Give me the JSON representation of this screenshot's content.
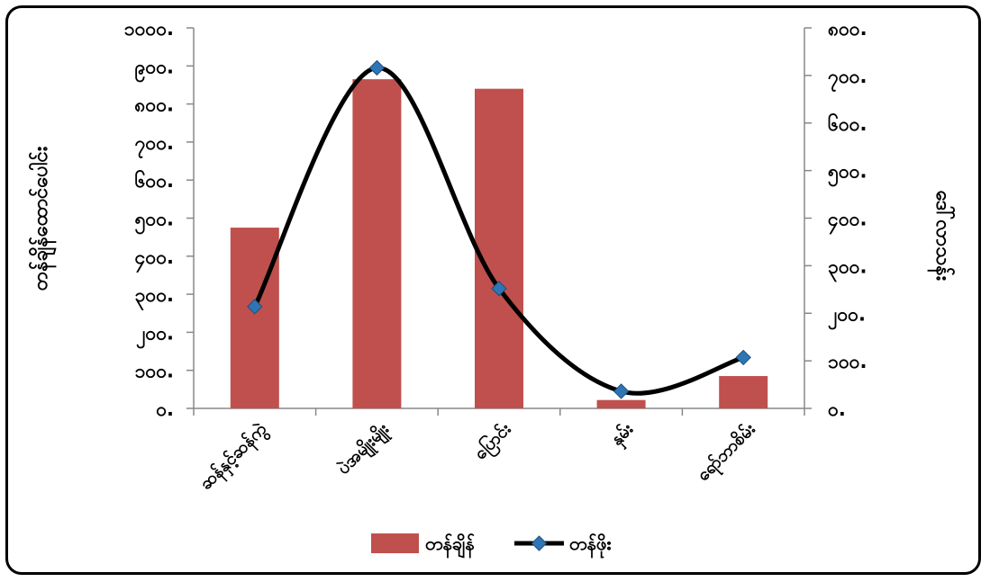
{
  "chart_data": {
    "type": "bar",
    "categories": [
      "ဆန်နှင့်ဆန်ကွဲ",
      "ပဲအမျိုးမျိုး",
      "ပြောင်း",
      "နှမ်း",
      "ရော်ဘာစိမ်း"
    ],
    "series": [
      {
        "name": "တန်ချိန်",
        "type": "bar",
        "axis": "left",
        "values": [
          475,
          865,
          840,
          22,
          85
        ]
      },
      {
        "name": "တန်ဖိုး",
        "type": "line",
        "axis": "right",
        "values": [
          214,
          716,
          252,
          36,
          107
        ]
      }
    ],
    "ylabel_left": "တန်ချိန်ထောင်ပေါင်း",
    "ylabel_right": "ဒေါ်လာသန်း",
    "ylim_left": [
      0,
      1000
    ],
    "ylim_right": [
      0,
      800
    ],
    "left_ticks": [
      "၀.",
      "၁၀၀.",
      "၂၀၀.",
      "၃၀၀.",
      "၄၀၀.",
      "၅၀၀.",
      "၆၀၀.",
      "၇၀၀.",
      "၈၀၀.",
      "၉၀၀.",
      "၁၀၀၀."
    ],
    "right_ticks": [
      "၀.",
      "၁၀၀.",
      "၂၀၀.",
      "၃၀၀.",
      "၄၀၀.",
      "၅၀၀.",
      "၆၀၀.",
      "၇၀၀.",
      "၈၀၀."
    ],
    "colors": {
      "bar": "#c0504d",
      "line": "#000000",
      "marker": "#2e75b6"
    },
    "legend_position": "bottom",
    "grid": false
  }
}
